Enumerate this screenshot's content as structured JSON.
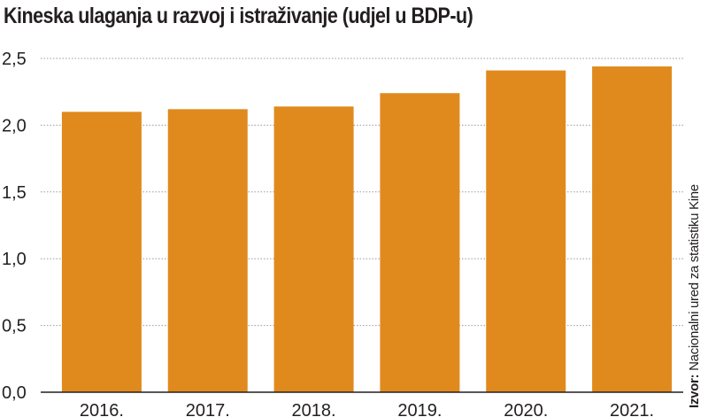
{
  "chart_data": {
    "type": "bar",
    "title": "Kineska ulaganja u razvoj i istraživanje (udjel u BDP-u)",
    "categories": [
      "2016.",
      "2017.",
      "2018.",
      "2019.",
      "2020.",
      "2021."
    ],
    "values": [
      2.1,
      2.12,
      2.14,
      2.24,
      2.41,
      2.44
    ],
    "ylim": [
      0,
      2.5
    ],
    "yticks": [
      "0,0",
      "0,5",
      "1,0",
      "1,5",
      "2,0",
      "2,5"
    ],
    "grid": true,
    "bar_color": "#e08a1e",
    "source_label": "Izvor:",
    "source_text": "Nacionalni ured za statistiku Kine"
  }
}
